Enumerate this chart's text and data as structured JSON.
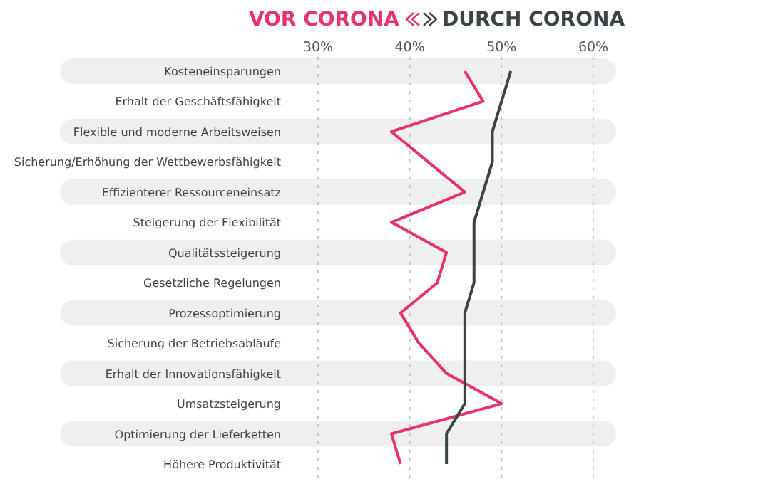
{
  "chart_data": {
    "type": "line",
    "orientation": "horizontal",
    "categories": [
      "Kosteneinsparungen",
      "Erhalt der Geschäftsfähigkeit",
      "Flexible und moderne Arbeitsweisen",
      "Sicherung/Erhöhung der Wettbewerbsfähigkeit",
      "Effizienterer Ressourceneinsatz",
      "Steigerung der Flexibilität",
      "Qualitätssteigerung",
      "Gesetzliche Regelungen",
      "Prozessoptimierung",
      "Sicherung der Betriebsabläufe",
      "Erhalt der Innovationsfähigkeit",
      "Umsatzsteigerung",
      "Optimierung der Lieferketten",
      "Höhere Produktivität"
    ],
    "series": [
      {
        "name": "VOR CORONA",
        "color": "#e8336a",
        "values": [
          46,
          48,
          38,
          42,
          46,
          38,
          44,
          43,
          39,
          41,
          44,
          50,
          38,
          39
        ]
      },
      {
        "name": "DURCH CORONA",
        "color": "#3a4448",
        "values": [
          51,
          50,
          49,
          49,
          48,
          47,
          47,
          47,
          46,
          46,
          46,
          46,
          44,
          44
        ]
      }
    ],
    "xlim": [
      30,
      60
    ],
    "xticks": [
      {
        "value": 30,
        "label": "30%"
      },
      {
        "value": 40,
        "label": "40%"
      },
      {
        "value": 50,
        "label": "50%"
      },
      {
        "value": 60,
        "label": "60%"
      }
    ],
    "grid": true,
    "legend": "top",
    "marker": "none",
    "line_style": "solid"
  }
}
